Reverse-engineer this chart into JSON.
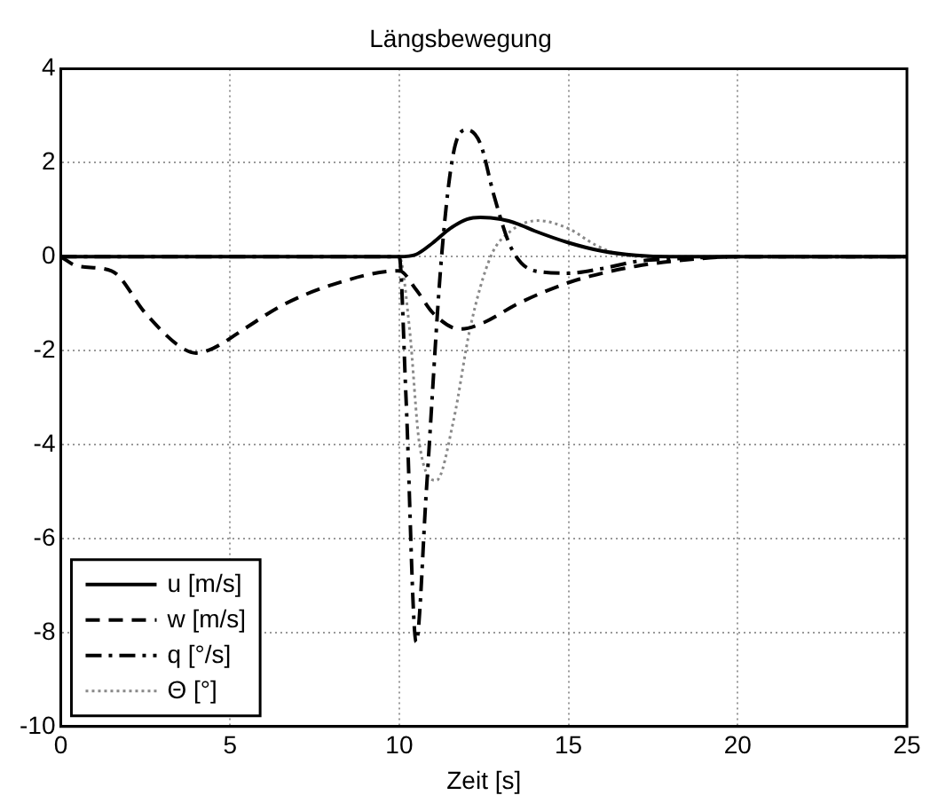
{
  "chart_data": {
    "type": "line",
    "title": "Längsbewegung",
    "xlabel": "Zeit [s]",
    "xlim": [
      0,
      25
    ],
    "xticks": [
      0,
      5,
      10,
      15,
      20,
      25
    ],
    "ylim": [
      -10,
      4
    ],
    "yticks": [
      -10,
      -8,
      -6,
      -4,
      -2,
      0,
      2,
      4
    ],
    "grid": true,
    "legend": "bottom left",
    "marker": "none",
    "series": [
      {
        "name": "u [m/s]",
        "color": "#000000",
        "line_style": "solid",
        "x": [
          0,
          10,
          10.5,
          11,
          11.5,
          12,
          12.4,
          13,
          13.5,
          14,
          15,
          16,
          17,
          18,
          20,
          25
        ],
        "values": [
          0,
          0,
          0.05,
          0.3,
          0.6,
          0.8,
          0.84,
          0.8,
          0.7,
          0.55,
          0.3,
          0.12,
          0.03,
          0,
          0,
          0
        ]
      },
      {
        "name": "w [m/s]",
        "color": "#000000",
        "line_style": "dashed",
        "x": [
          0,
          0.5,
          1.5,
          2.5,
          3.5,
          4,
          4.5,
          5.5,
          6.5,
          8,
          10,
          10.5,
          11,
          11.8,
          12.5,
          13.5,
          15,
          16,
          17,
          18,
          20,
          25
        ],
        "values": [
          0,
          -0.2,
          -0.3,
          -1.2,
          -1.9,
          -2.05,
          -1.95,
          -1.5,
          -1.05,
          -0.6,
          -0.3,
          -0.7,
          -1.2,
          -1.54,
          -1.4,
          -1.0,
          -0.55,
          -0.35,
          -0.2,
          -0.1,
          0,
          0
        ]
      },
      {
        "name": "q [°/s]",
        "color": "#000000",
        "line_style": "dashdot",
        "x": [
          0,
          10,
          10.2,
          10.5,
          10.8,
          11.25,
          11.6,
          12,
          12.4,
          12.8,
          13.3,
          14,
          15,
          16,
          17,
          18,
          20,
          25
        ],
        "values": [
          0,
          0,
          -3,
          -8.2,
          -5,
          0,
          2.2,
          2.7,
          2.4,
          1.3,
          0.2,
          -0.3,
          -0.35,
          -0.25,
          -0.1,
          -0.05,
          0,
          0
        ]
      },
      {
        "name": "Θ [°]",
        "color": "#888888",
        "line_style": "dotted",
        "x": [
          0,
          10,
          10.3,
          10.6,
          11.1,
          11.6,
          12.1,
          12.7,
          13.3,
          14.1,
          15,
          15.8,
          16.5,
          17.5,
          25
        ],
        "values": [
          0,
          0,
          -1.5,
          -4,
          -4.76,
          -3.5,
          -1.5,
          0,
          0.55,
          0.77,
          0.6,
          0.25,
          0.05,
          0,
          0
        ]
      }
    ]
  }
}
